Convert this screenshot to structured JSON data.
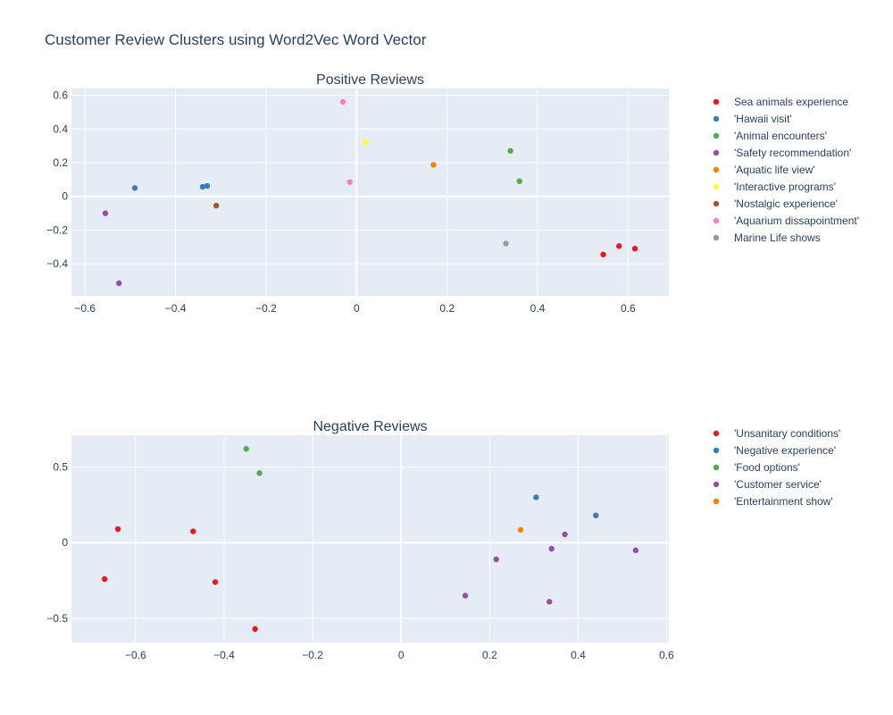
{
  "title": "Customer Review Clusters using Word2Vec Word Vector",
  "chart_data": [
    {
      "type": "scatter",
      "title": "Positive Reviews",
      "xlim": [
        -0.63,
        0.69
      ],
      "ylim": [
        -0.59,
        0.64
      ],
      "xticks": [
        -0.6,
        -0.4,
        -0.2,
        0,
        0.2,
        0.4,
        0.6
      ],
      "xtick_labels": [
        "−0.6",
        "−0.4",
        "−0.2",
        "0",
        "0.2",
        "0.4",
        "0.6"
      ],
      "yticks": [
        -0.4,
        -0.2,
        0,
        0.2,
        0.4,
        0.6
      ],
      "ytick_labels": [
        "−0.4",
        "−0.2",
        "0",
        "0.2",
        "0.4",
        "0.6"
      ],
      "grid": true,
      "legend_position": "right",
      "series": [
        {
          "name": "Sea animals experience",
          "color": "#e41a1c",
          "points": [
            [
              0.545,
              -0.345
            ],
            [
              0.58,
              -0.295
            ],
            [
              0.615,
              -0.31
            ]
          ]
        },
        {
          "name": "'Hawaii visit'",
          "color": "#377eb8",
          "points": [
            [
              -0.49,
              0.05
            ],
            [
              -0.34,
              0.057
            ],
            [
              -0.33,
              0.062
            ]
          ]
        },
        {
          "name": "'Animal encounters'",
          "color": "#4daf4a",
          "points": [
            [
              0.34,
              0.27
            ],
            [
              0.36,
              0.09
            ]
          ]
        },
        {
          "name": "'Safety recommendation'",
          "color": "#984ea3",
          "points": [
            [
              -0.555,
              -0.1
            ],
            [
              -0.525,
              -0.515
            ]
          ]
        },
        {
          "name": "'Aquatic life view'",
          "color": "#ff7f00",
          "points": [
            [
              0.17,
              0.187
            ]
          ]
        },
        {
          "name": "'Interactive programs'",
          "color": "#ffff33",
          "points": [
            [
              0.02,
              0.32
            ]
          ]
        },
        {
          "name": "'Nostalgic experience'",
          "color": "#a65628",
          "points": [
            [
              -0.31,
              -0.055
            ]
          ]
        },
        {
          "name": "'Aquarium dissapointment'",
          "color": "#f781bf",
          "points": [
            [
              -0.03,
              0.56
            ],
            [
              -0.015,
              0.085
            ]
          ]
        },
        {
          "name": "Marine Life shows",
          "color": "#999999",
          "points": [
            [
              0.33,
              -0.28
            ]
          ]
        }
      ]
    },
    {
      "type": "scatter",
      "title": "Negative Reviews",
      "xlim": [
        -0.745,
        0.605
      ],
      "ylim": [
        -0.66,
        0.71
      ],
      "xticks": [
        -0.6,
        -0.4,
        -0.2,
        0,
        0.2,
        0.4,
        0.6
      ],
      "xtick_labels": [
        "−0.6",
        "−0.4",
        "−0.2",
        "0",
        "0.2",
        "0.4",
        "0.6"
      ],
      "yticks": [
        -0.5,
        0,
        0.5
      ],
      "ytick_labels": [
        "−0.5",
        "0",
        "0.5"
      ],
      "grid": true,
      "legend_position": "right",
      "series": [
        {
          "name": "'Unsanitary conditions'",
          "color": "#e41a1c",
          "points": [
            [
              -0.64,
              0.09
            ],
            [
              -0.67,
              -0.24
            ],
            [
              -0.47,
              0.075
            ],
            [
              -0.42,
              -0.26
            ],
            [
              -0.33,
              -0.57
            ]
          ]
        },
        {
          "name": "'Negative experience'",
          "color": "#377eb8",
          "points": [
            [
              0.305,
              0.3
            ],
            [
              0.44,
              0.18
            ]
          ]
        },
        {
          "name": "'Food options'",
          "color": "#4daf4a",
          "points": [
            [
              -0.35,
              0.62
            ],
            [
              -0.32,
              0.46
            ]
          ]
        },
        {
          "name": "'Customer service'",
          "color": "#984ea3",
          "points": [
            [
              0.215,
              -0.11
            ],
            [
              0.145,
              -0.35
            ],
            [
              0.34,
              -0.04
            ],
            [
              0.37,
              0.055
            ],
            [
              0.335,
              -0.39
            ],
            [
              0.53,
              -0.05
            ]
          ]
        },
        {
          "name": "'Entertainment show'",
          "color": "#ff7f00",
          "points": [
            [
              0.27,
              0.085
            ]
          ]
        }
      ]
    }
  ]
}
